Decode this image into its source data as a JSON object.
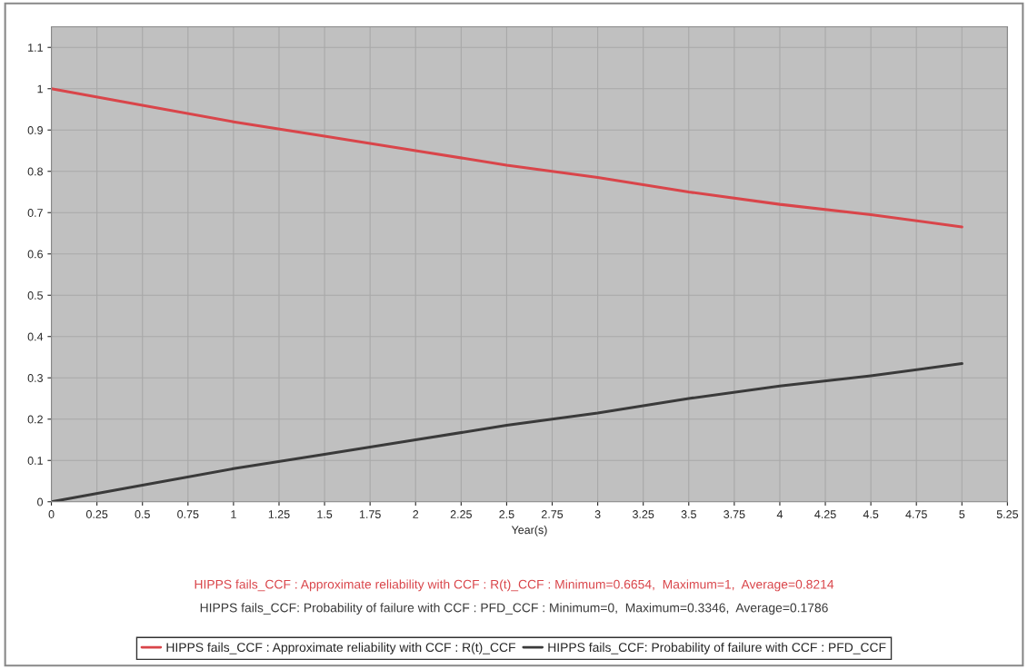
{
  "chart_data": {
    "type": "line",
    "xlabel": "Year(s)",
    "x": [
      0,
      0.5,
      1,
      1.5,
      2,
      2.5,
      3,
      3.5,
      4,
      4.5,
      5
    ],
    "series": [
      {
        "name": "HIPPS fails_CCF : Approximate reliability with CCF : R(t)_CCF",
        "color": "#d9454a",
        "values": [
          1,
          0.96,
          0.92,
          0.885,
          0.85,
          0.815,
          0.785,
          0.75,
          0.72,
          0.695,
          0.6654
        ]
      },
      {
        "name": "HIPPS fails_CCF: Probability of failure with CCF : PFD_CCF",
        "color": "#3a3a3a",
        "values": [
          0,
          0.04,
          0.08,
          0.115,
          0.15,
          0.185,
          0.215,
          0.25,
          0.28,
          0.305,
          0.3346
        ]
      }
    ],
    "xlim": [
      0,
      5.25
    ],
    "xticks": [
      0,
      0.25,
      0.5,
      0.75,
      1,
      1.25,
      1.5,
      1.75,
      2,
      2.25,
      2.5,
      2.75,
      3,
      3.25,
      3.5,
      3.75,
      4,
      4.25,
      4.5,
      4.75,
      5,
      5.25
    ],
    "ylim": [
      0,
      1.15
    ],
    "yticks": [
      0,
      0.1,
      0.2,
      0.3,
      0.4,
      0.5,
      0.6,
      0.7,
      0.8,
      0.9,
      1,
      1.1
    ],
    "annotations": [
      "HIPPS fails_CCF : Approximate reliability with CCF : R(t)_CCF : Minimum=0.6654,  Maximum=1,  Average=0.8214",
      "HIPPS fails_CCF: Probability of failure with CCF : PFD_CCF : Minimum=0,  Maximum=0.3346,  Average=0.1786"
    ],
    "grid": true,
    "legend": "bottom",
    "marker": "none",
    "line_style": "solid"
  }
}
